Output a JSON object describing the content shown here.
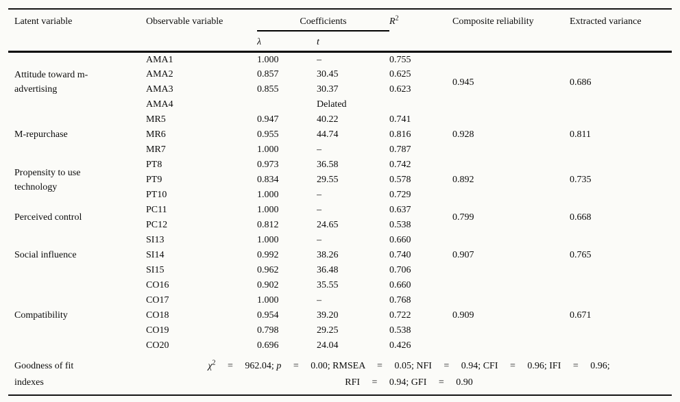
{
  "table": {
    "headers": {
      "latent": "Latent variable",
      "observable": "Observable variable",
      "coefficients": "Coefficients",
      "lambda": "λ",
      "t": "t",
      "r2_base": "R",
      "r2_sup": "2",
      "composite": "Composite reliability",
      "extracted": "Extracted variance"
    },
    "groups": [
      {
        "latent": "Attitude toward m-\nadvertising",
        "composite": "0.945",
        "extracted": "0.686",
        "rows": [
          {
            "obs": "AMA1",
            "lambda": "1.000",
            "t": "–",
            "r2": "0.755"
          },
          {
            "obs": "AMA2",
            "lambda": "0.857",
            "t": "30.45",
            "r2": "0.625"
          },
          {
            "obs": "AMA3",
            "lambda": "0.855",
            "t": "30.37",
            "r2": "0.623"
          },
          {
            "obs": "AMA4",
            "lambda": "",
            "t": "Delated",
            "r2": ""
          }
        ]
      },
      {
        "latent": "M-repurchase",
        "composite": "0.928",
        "extracted": "0.811",
        "rows": [
          {
            "obs": "MR5",
            "lambda": "0.947",
            "t": "40.22",
            "r2": "0.741"
          },
          {
            "obs": "MR6",
            "lambda": "0.955",
            "t": "44.74",
            "r2": "0.816"
          },
          {
            "obs": "MR7",
            "lambda": "1.000",
            "t": "–",
            "r2": "0.787"
          }
        ]
      },
      {
        "latent": "Propensity to use\ntechnology",
        "composite": "0.892",
        "extracted": "0.735",
        "rows": [
          {
            "obs": "PT8",
            "lambda": "0.973",
            "t": "36.58",
            "r2": "0.742"
          },
          {
            "obs": "PT9",
            "lambda": "0.834",
            "t": "29.55",
            "r2": "0.578"
          },
          {
            "obs": "PT10",
            "lambda": "1.000",
            "t": "–",
            "r2": "0.729"
          }
        ]
      },
      {
        "latent": "Perceived control",
        "composite": "0.799",
        "extracted": "0.668",
        "rows": [
          {
            "obs": "PC11",
            "lambda": "1.000",
            "t": "–",
            "r2": "0.637"
          },
          {
            "obs": "PC12",
            "lambda": "0.812",
            "t": "24.65",
            "r2": "0.538"
          }
        ]
      },
      {
        "latent": "Social influence",
        "composite": "0.907",
        "extracted": "0.765",
        "rows": [
          {
            "obs": "SI13",
            "lambda": "1.000",
            "t": "–",
            "r2": "0.660"
          },
          {
            "obs": "SI14",
            "lambda": "0.992",
            "t": "38.26",
            "r2": "0.740"
          },
          {
            "obs": "SI15",
            "lambda": "0.962",
            "t": "36.48",
            "r2": "0.706"
          }
        ]
      },
      {
        "latent": "Compatibility",
        "composite": "0.909",
        "extracted": "0.671",
        "rows": [
          {
            "obs": "CO16",
            "lambda": "0.902",
            "t": "35.55",
            "r2": "0.660"
          },
          {
            "obs": "CO17",
            "lambda": "1.000",
            "t": "–",
            "r2": "0.768"
          },
          {
            "obs": "CO18",
            "lambda": "0.954",
            "t": "39.20",
            "r2": "0.722"
          },
          {
            "obs": "CO19",
            "lambda": "0.798",
            "t": "29.25",
            "r2": "0.538"
          },
          {
            "obs": "CO20",
            "lambda": "0.696",
            "t": "24.04",
            "r2": "0.426"
          }
        ]
      }
    ],
    "footer": {
      "label": "Goodness of fit\nindexes",
      "chi": "χ",
      "chi_sup": "2",
      "seg1": "  =  962.04; ",
      "p": "p",
      "seg2": "  =  0.00; RMSEA  =  0.05; NFI  =  0.94; CFI  =  0.96; IFI  =  0.96;",
      "line2": "RFI  =  0.94; GFI  =  0.90"
    }
  }
}
